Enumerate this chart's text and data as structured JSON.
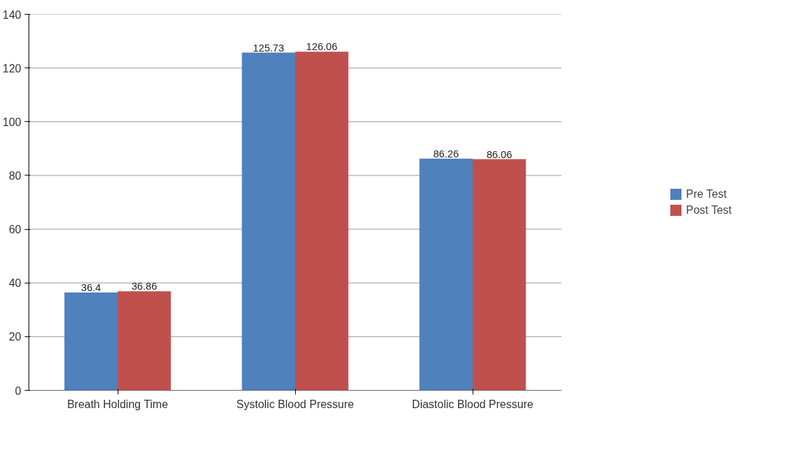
{
  "chart_data": {
    "type": "bar",
    "categories": [
      "Breath Holding Time",
      "Systolic Blood Pressure",
      "Diastolic Blood Pressure"
    ],
    "series": [
      {
        "name": "Pre Test",
        "color": "#4f81bd",
        "values": [
          36.4,
          125.73,
          86.26
        ]
      },
      {
        "name": "Post Test",
        "color": "#c0504d",
        "values": [
          36.86,
          126.06,
          86.06
        ]
      }
    ],
    "ylim": [
      0,
      140
    ],
    "yticks": [
      0,
      20,
      40,
      60,
      80,
      100,
      120,
      140
    ],
    "grid": "y",
    "legend": "right",
    "data_labels": true
  }
}
